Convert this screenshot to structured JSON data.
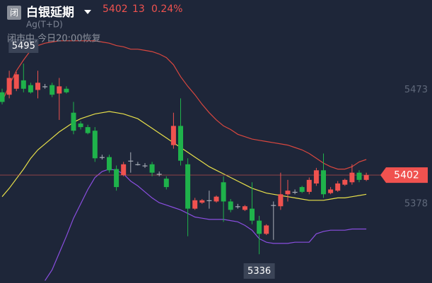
{
  "header": {
    "badge": "闭",
    "title": "白银延期",
    "price": "5402",
    "change": "13",
    "change_pct": "0.24%",
    "code": "Ag(T+D)",
    "status": "闭市中,今日20:00恢复"
  },
  "chart_data": {
    "type": "candlestick",
    "open": [
      5471,
      5469,
      5474,
      5481,
      5477,
      5473,
      5476,
      5477,
      5470,
      5474,
      5454,
      5445,
      5442,
      5439,
      5417,
      5417,
      5407,
      5402,
      5414,
      5411,
      5410,
      5411,
      5403,
      5399,
      5427,
      5443,
      5411,
      5374,
      5379,
      5381,
      5380,
      5396,
      5380,
      5376,
      5373,
      5374,
      5364,
      5353,
      5377,
      5376,
      5386,
      5388,
      5392,
      5388,
      5395,
      5406,
      5387,
      5389,
      5394,
      5396,
      5404,
      5398
    ],
    "high": [
      5474,
      5489,
      5488,
      5495,
      5479,
      5489,
      5478,
      5479,
      5483,
      5476,
      5463,
      5447,
      5444,
      5442,
      5419,
      5419,
      5410,
      5413,
      5421,
      5413,
      5412,
      5413,
      5405,
      5401,
      5454,
      5466,
      5416,
      5383,
      5382,
      5389,
      5385,
      5401,
      5382,
      5378,
      5377,
      5396,
      5368,
      5361,
      5380,
      5404,
      5398,
      5390,
      5393,
      5400,
      5408,
      5420,
      5392,
      5397,
      5399,
      5411,
      5406,
      5404
    ],
    "low": [
      5461,
      5466,
      5472,
      5471,
      5470,
      5466,
      5474,
      5467,
      5448,
      5470,
      5436,
      5440,
      5436,
      5413,
      5415,
      5404,
      5389,
      5401,
      5404,
      5410,
      5408,
      5401,
      5401,
      5390,
      5424,
      5410,
      5351,
      5373,
      5378,
      5374,
      5379,
      5363,
      5371,
      5374,
      5372,
      5361,
      5336,
      5352,
      5348,
      5373,
      5380,
      5386,
      5387,
      5386,
      5393,
      5383,
      5386,
      5388,
      5393,
      5394,
      5396,
      5397
    ],
    "close": [
      5463,
      5483,
      5486,
      5474,
      5471,
      5479,
      5476,
      5469,
      5476,
      5471,
      5439,
      5442,
      5437,
      5416,
      5417,
      5406,
      5392,
      5411,
      5414,
      5411,
      5410,
      5404,
      5403,
      5392,
      5443,
      5414,
      5374,
      5381,
      5381,
      5381,
      5384,
      5380,
      5373,
      5376,
      5376,
      5364,
      5353,
      5360,
      5377,
      5386,
      5389,
      5388,
      5388,
      5398,
      5406,
      5386,
      5390,
      5395,
      5398,
      5404,
      5398,
      5402
    ],
    "up_color": "#f0524f",
    "down_color": "#1fb24b",
    "flat_color": "#a8aeb8",
    "bands": [
      {
        "color": "#d9473f",
        "values": [
          5463,
          5477,
          5489,
          5498,
          5506,
          5510,
          5512,
          5513,
          5514,
          5514,
          5514,
          5514,
          5514,
          5514,
          5513,
          5512,
          5510,
          5509,
          5507,
          5507,
          5506,
          5505,
          5503,
          5500,
          5494,
          5484,
          5476,
          5469,
          5461,
          5454,
          5448,
          5443,
          5440,
          5436,
          5434,
          5432,
          5431,
          5430,
          5429,
          5428,
          5427,
          5425,
          5423,
          5420,
          5416,
          5412,
          5409,
          5407,
          5407,
          5409,
          5413,
          5415
        ]
      },
      {
        "color": "#e8e04a",
        "values": [
          5384,
          5391,
          5399,
          5407,
          5416,
          5423,
          5428,
          5433,
          5438,
          5442,
          5446,
          5449,
          5451,
          5453,
          5454,
          5455,
          5454,
          5453,
          5451,
          5449,
          5445,
          5441,
          5437,
          5433,
          5429,
          5425,
          5421,
          5417,
          5413,
          5409,
          5406,
          5403,
          5400,
          5397,
          5394,
          5391,
          5389,
          5387,
          5386,
          5385,
          5384,
          5383,
          5382,
          5381,
          5381,
          5381,
          5382,
          5383,
          5383,
          5384,
          5385,
          5386
        ]
      },
      {
        "color": "#8a4ee0",
        "values": [
          null,
          null,
          null,
          null,
          null,
          null,
          5314,
          5323,
          5337,
          5351,
          5366,
          5378,
          5390,
          5400,
          5405,
          5407,
          5406,
          5403,
          5397,
          5393,
          5388,
          5383,
          5379,
          5377,
          5375,
          5373,
          5370,
          5367,
          5366,
          5365,
          5365,
          5365,
          5364,
          5363,
          5360,
          5356,
          5349,
          5346,
          5345,
          5345,
          5345,
          5346,
          5346,
          5346,
          5353,
          5355,
          5356,
          5356,
          5356,
          5357,
          5357,
          5357
        ]
      }
    ],
    "ylim": [
      5312,
      5548
    ],
    "yticks": [
      5473,
      5378
    ]
  }
}
